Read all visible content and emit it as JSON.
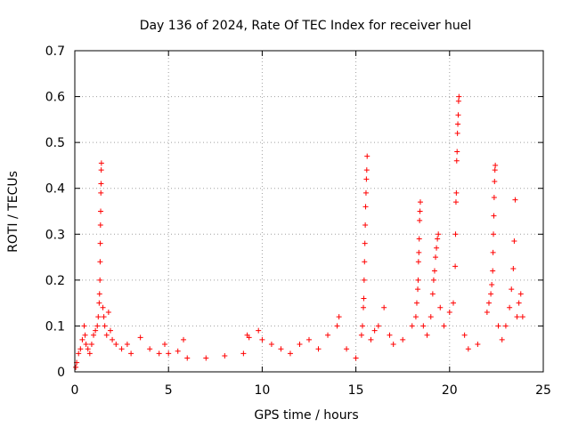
{
  "chart_data": {
    "type": "scatter",
    "title": "Day 136 of 2024, Rate Of TEC Index for receiver huel",
    "xlabel": "GPS time / hours",
    "ylabel": "ROTI / TECUs",
    "xlim": [
      0,
      25
    ],
    "ylim": [
      0,
      0.7
    ],
    "x_ticks": [
      0,
      5,
      10,
      15,
      20,
      25
    ],
    "x_tick_labels": [
      "0",
      "5",
      "10",
      "15",
      "20",
      "25"
    ],
    "y_ticks": [
      0,
      0.1,
      0.2,
      0.3,
      0.4,
      0.5,
      0.6,
      0.7
    ],
    "y_tick_labels": [
      "0",
      "0.1",
      "0.2",
      "0.3",
      "0.4",
      "0.5",
      "0.6",
      "0.7"
    ],
    "grid": true,
    "marker": "plus",
    "colors": {
      "points": "#ff0000",
      "grid": "#a0a0a0",
      "axes": "#000000"
    },
    "series": [
      {
        "points": [
          [
            0.05,
            0.01
          ],
          [
            0.1,
            0.02
          ],
          [
            0.2,
            0.04
          ],
          [
            0.3,
            0.05
          ],
          [
            0.4,
            0.07
          ],
          [
            0.5,
            0.1
          ],
          [
            0.55,
            0.08
          ],
          [
            0.6,
            0.06
          ],
          [
            0.7,
            0.05
          ],
          [
            0.8,
            0.04
          ],
          [
            0.9,
            0.06
          ],
          [
            1.0,
            0.08
          ],
          [
            1.1,
            0.09
          ],
          [
            1.2,
            0.1
          ],
          [
            1.25,
            0.12
          ],
          [
            1.3,
            0.15
          ],
          [
            1.32,
            0.17
          ],
          [
            1.34,
            0.2
          ],
          [
            1.35,
            0.24
          ],
          [
            1.36,
            0.28
          ],
          [
            1.37,
            0.32
          ],
          [
            1.38,
            0.35
          ],
          [
            1.39,
            0.39
          ],
          [
            1.4,
            0.41
          ],
          [
            1.41,
            0.44
          ],
          [
            1.42,
            0.455
          ],
          [
            1.5,
            0.14
          ],
          [
            1.55,
            0.12
          ],
          [
            1.6,
            0.1
          ],
          [
            1.7,
            0.08
          ],
          [
            1.8,
            0.13
          ],
          [
            1.9,
            0.09
          ],
          [
            2.0,
            0.07
          ],
          [
            2.2,
            0.06
          ],
          [
            2.5,
            0.05
          ],
          [
            2.8,
            0.06
          ],
          [
            3.0,
            0.04
          ],
          [
            3.5,
            0.075
          ],
          [
            4.0,
            0.05
          ],
          [
            4.5,
            0.04
          ],
          [
            4.8,
            0.06
          ],
          [
            5.0,
            0.04
          ],
          [
            5.5,
            0.045
          ],
          [
            5.8,
            0.07
          ],
          [
            6.0,
            0.03
          ],
          [
            7.0,
            0.03
          ],
          [
            8.0,
            0.035
          ],
          [
            9.0,
            0.04
          ],
          [
            9.2,
            0.08
          ],
          [
            9.3,
            0.075
          ],
          [
            9.8,
            0.09
          ],
          [
            10.0,
            0.07
          ],
          [
            10.5,
            0.06
          ],
          [
            11.0,
            0.05
          ],
          [
            11.5,
            0.04
          ],
          [
            12.0,
            0.06
          ],
          [
            12.5,
            0.07
          ],
          [
            13.0,
            0.05
          ],
          [
            13.5,
            0.08
          ],
          [
            14.0,
            0.1
          ],
          [
            14.1,
            0.12
          ],
          [
            14.5,
            0.05
          ],
          [
            15.0,
            0.03
          ],
          [
            15.3,
            0.08
          ],
          [
            15.35,
            0.1
          ],
          [
            15.4,
            0.14
          ],
          [
            15.42,
            0.16
          ],
          [
            15.44,
            0.2
          ],
          [
            15.46,
            0.24
          ],
          [
            15.48,
            0.28
          ],
          [
            15.5,
            0.32
          ],
          [
            15.52,
            0.36
          ],
          [
            15.54,
            0.39
          ],
          [
            15.56,
            0.42
          ],
          [
            15.58,
            0.44
          ],
          [
            15.6,
            0.47
          ],
          [
            15.8,
            0.07
          ],
          [
            16.0,
            0.09
          ],
          [
            16.2,
            0.1
          ],
          [
            16.5,
            0.14
          ],
          [
            16.8,
            0.08
          ],
          [
            17.0,
            0.06
          ],
          [
            17.5,
            0.07
          ],
          [
            18.0,
            0.1
          ],
          [
            18.2,
            0.12
          ],
          [
            18.25,
            0.15
          ],
          [
            18.3,
            0.18
          ],
          [
            18.32,
            0.2
          ],
          [
            18.34,
            0.24
          ],
          [
            18.36,
            0.26
          ],
          [
            18.38,
            0.29
          ],
          [
            18.4,
            0.33
          ],
          [
            18.42,
            0.35
          ],
          [
            18.44,
            0.37
          ],
          [
            18.6,
            0.1
          ],
          [
            18.8,
            0.08
          ],
          [
            19.0,
            0.12
          ],
          [
            19.1,
            0.17
          ],
          [
            19.15,
            0.2
          ],
          [
            19.2,
            0.22
          ],
          [
            19.25,
            0.25
          ],
          [
            19.3,
            0.27
          ],
          [
            19.35,
            0.29
          ],
          [
            19.4,
            0.3
          ],
          [
            19.5,
            0.14
          ],
          [
            19.7,
            0.1
          ],
          [
            20.0,
            0.13
          ],
          [
            20.2,
            0.15
          ],
          [
            20.3,
            0.23
          ],
          [
            20.32,
            0.3
          ],
          [
            20.34,
            0.37
          ],
          [
            20.36,
            0.39
          ],
          [
            20.38,
            0.46
          ],
          [
            20.4,
            0.48
          ],
          [
            20.42,
            0.52
          ],
          [
            20.44,
            0.54
          ],
          [
            20.46,
            0.56
          ],
          [
            20.48,
            0.59
          ],
          [
            20.5,
            0.6
          ],
          [
            20.8,
            0.08
          ],
          [
            21.0,
            0.05
          ],
          [
            21.5,
            0.06
          ],
          [
            22.0,
            0.13
          ],
          [
            22.1,
            0.15
          ],
          [
            22.2,
            0.17
          ],
          [
            22.25,
            0.19
          ],
          [
            22.3,
            0.22
          ],
          [
            22.32,
            0.26
          ],
          [
            22.34,
            0.3
          ],
          [
            22.36,
            0.34
          ],
          [
            22.38,
            0.38
          ],
          [
            22.4,
            0.415
          ],
          [
            22.42,
            0.44
          ],
          [
            22.44,
            0.45
          ],
          [
            22.6,
            0.1
          ],
          [
            22.8,
            0.07
          ],
          [
            23.0,
            0.1
          ],
          [
            23.2,
            0.14
          ],
          [
            23.3,
            0.18
          ],
          [
            23.4,
            0.225
          ],
          [
            23.45,
            0.285
          ],
          [
            23.5,
            0.375
          ],
          [
            23.6,
            0.12
          ],
          [
            23.7,
            0.15
          ],
          [
            23.8,
            0.17
          ],
          [
            23.9,
            0.12
          ]
        ]
      }
    ]
  }
}
